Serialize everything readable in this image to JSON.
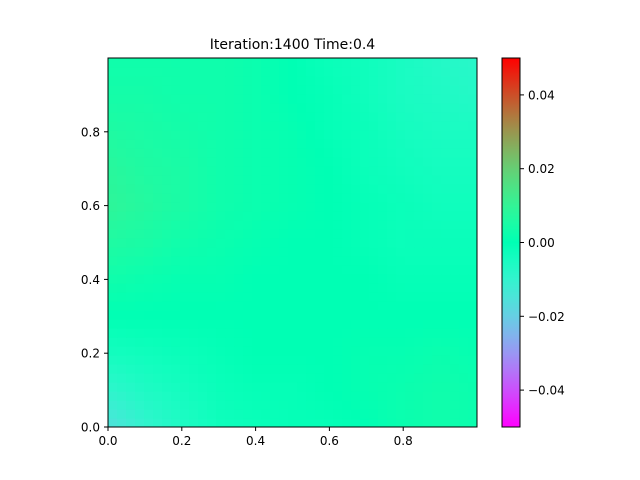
{
  "chart_data": {
    "type": "heatmap",
    "title": "Iteration:1400  Time:0.4",
    "xlabel": "",
    "ylabel": "",
    "xlim": [
      0,
      1
    ],
    "ylim": [
      0,
      1
    ],
    "x_ticks": [
      0.0,
      0.2,
      0.4,
      0.6,
      0.8
    ],
    "x_tick_labels": [
      "0.0",
      "0.2",
      "0.4",
      "0.6",
      "0.8"
    ],
    "y_ticks": [
      0.0,
      0.2,
      0.4,
      0.6,
      0.8
    ],
    "y_tick_labels": [
      "0.0",
      "0.2",
      "0.4",
      "0.6",
      "0.8"
    ],
    "colormap": "rainbow",
    "colorbar": {
      "vmin": -0.05,
      "vmax": 0.05,
      "ticks": [
        -0.04,
        -0.02,
        0.0,
        0.02,
        0.04
      ],
      "tick_labels": [
        "−0.04",
        "−0.02",
        "0.00",
        "0.02",
        "0.04"
      ]
    },
    "grid": false,
    "field_x": [
      0.0,
      0.1,
      0.2,
      0.3,
      0.4,
      0.5,
      0.6,
      0.7,
      0.8,
      0.9,
      1.0
    ],
    "field_y": [
      0.0,
      0.1,
      0.2,
      0.3,
      0.4,
      0.5,
      0.6,
      0.7,
      0.8,
      0.9,
      1.0
    ],
    "field_values": [
      [
        -0.016,
        -0.01,
        -0.006,
        -0.003,
        -0.002,
        -0.001,
        -0.001,
        0.0,
        0.002,
        0.003,
        0.002
      ],
      [
        -0.009,
        -0.006,
        -0.004,
        -0.002,
        -0.001,
        -0.001,
        0.0,
        0.001,
        0.002,
        0.003,
        0.002
      ],
      [
        -0.004,
        -0.003,
        -0.002,
        -0.001,
        0.0,
        0.0,
        0.0,
        0.001,
        0.001,
        0.002,
        0.001
      ],
      [
        0.0,
        0.0,
        0.0,
        0.0,
        0.0,
        0.0,
        0.0,
        0.0,
        0.0,
        0.0,
        0.0
      ],
      [
        0.003,
        0.002,
        0.001,
        0.001,
        0.0,
        0.0,
        0.0,
        0.0,
        -0.001,
        -0.001,
        -0.001
      ],
      [
        0.006,
        0.005,
        0.003,
        0.002,
        0.001,
        0.0,
        0.0,
        -0.001,
        -0.002,
        -0.002,
        -0.002
      ],
      [
        0.009,
        0.007,
        0.005,
        0.003,
        0.002,
        0.001,
        0.0,
        -0.001,
        -0.002,
        -0.003,
        -0.003
      ],
      [
        0.008,
        0.006,
        0.005,
        0.003,
        0.002,
        0.001,
        0.0,
        -0.002,
        -0.003,
        -0.004,
        -0.004
      ],
      [
        0.006,
        0.005,
        0.004,
        0.003,
        0.002,
        0.001,
        -0.001,
        -0.002,
        -0.004,
        -0.005,
        -0.005
      ],
      [
        0.004,
        0.004,
        0.003,
        0.003,
        0.002,
        0.0,
        -0.001,
        -0.003,
        -0.005,
        -0.006,
        -0.007
      ],
      [
        0.003,
        0.003,
        0.003,
        0.003,
        0.002,
        0.0,
        -0.002,
        -0.003,
        -0.005,
        -0.007,
        -0.008
      ]
    ]
  }
}
